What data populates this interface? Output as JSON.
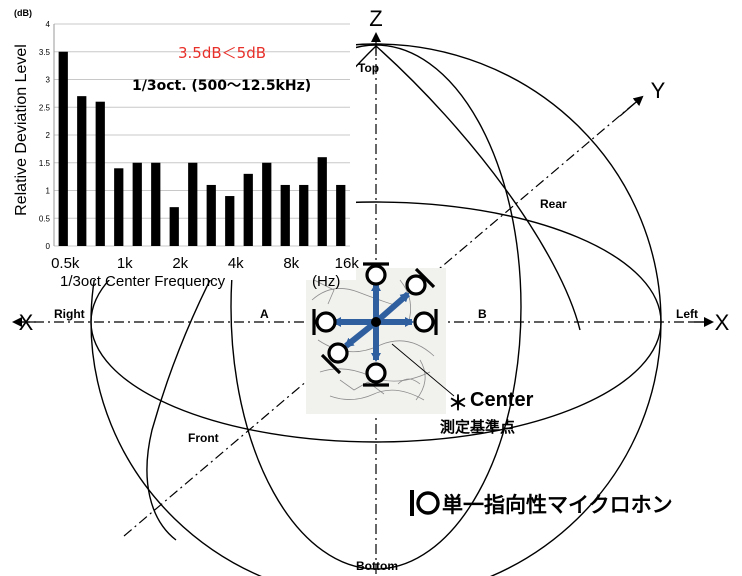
{
  "diagram": {
    "axes": {
      "x_left": "X",
      "x_right": "X",
      "y": "Y",
      "z": "Z"
    },
    "labels": {
      "top": "Top",
      "bottom": "Bottom",
      "rear": "Rear",
      "front": "Front",
      "left": "Left",
      "right": "Right",
      "a": "A",
      "b": "B"
    },
    "center": {
      "mark": "＊",
      "label": "Center",
      "label_jp": "測定基準点"
    },
    "legend": {
      "mic_label": "単一指向性マイクロホン"
    }
  },
  "chart_data": {
    "type": "bar",
    "categories": [
      "0.5k",
      "",
      "",
      "1k",
      "",
      "",
      "2k",
      "",
      "",
      "4k",
      "",
      "",
      "8k",
      "",
      "",
      "16k"
    ],
    "xtick_labels": [
      "0.5k",
      "1k",
      "2k",
      "4k",
      "8k",
      "16k"
    ],
    "values": [
      3.5,
      2.7,
      2.6,
      1.4,
      1.5,
      1.5,
      0.7,
      1.5,
      1.1,
      0.9,
      1.3,
      1.5,
      1.1,
      1.1,
      1.6,
      1.1
    ],
    "yunit": "(dB)",
    "yticks": [
      0,
      0.5,
      1,
      1.5,
      2,
      2.5,
      3,
      3.5,
      4
    ],
    "ylim": [
      0,
      4
    ],
    "ylabel": "Relative Deviation Level",
    "xlabel": "1/3oct Center Frequency",
    "xunit": "(Hz)",
    "annotations": [
      "3.5dB＜5dB",
      "1/3oct. (500～12.5kHz)"
    ],
    "colors": {
      "bar": "#000000",
      "highlight_text": "#e8302a",
      "grid": "#c8c8c8"
    },
    "grid": true
  }
}
